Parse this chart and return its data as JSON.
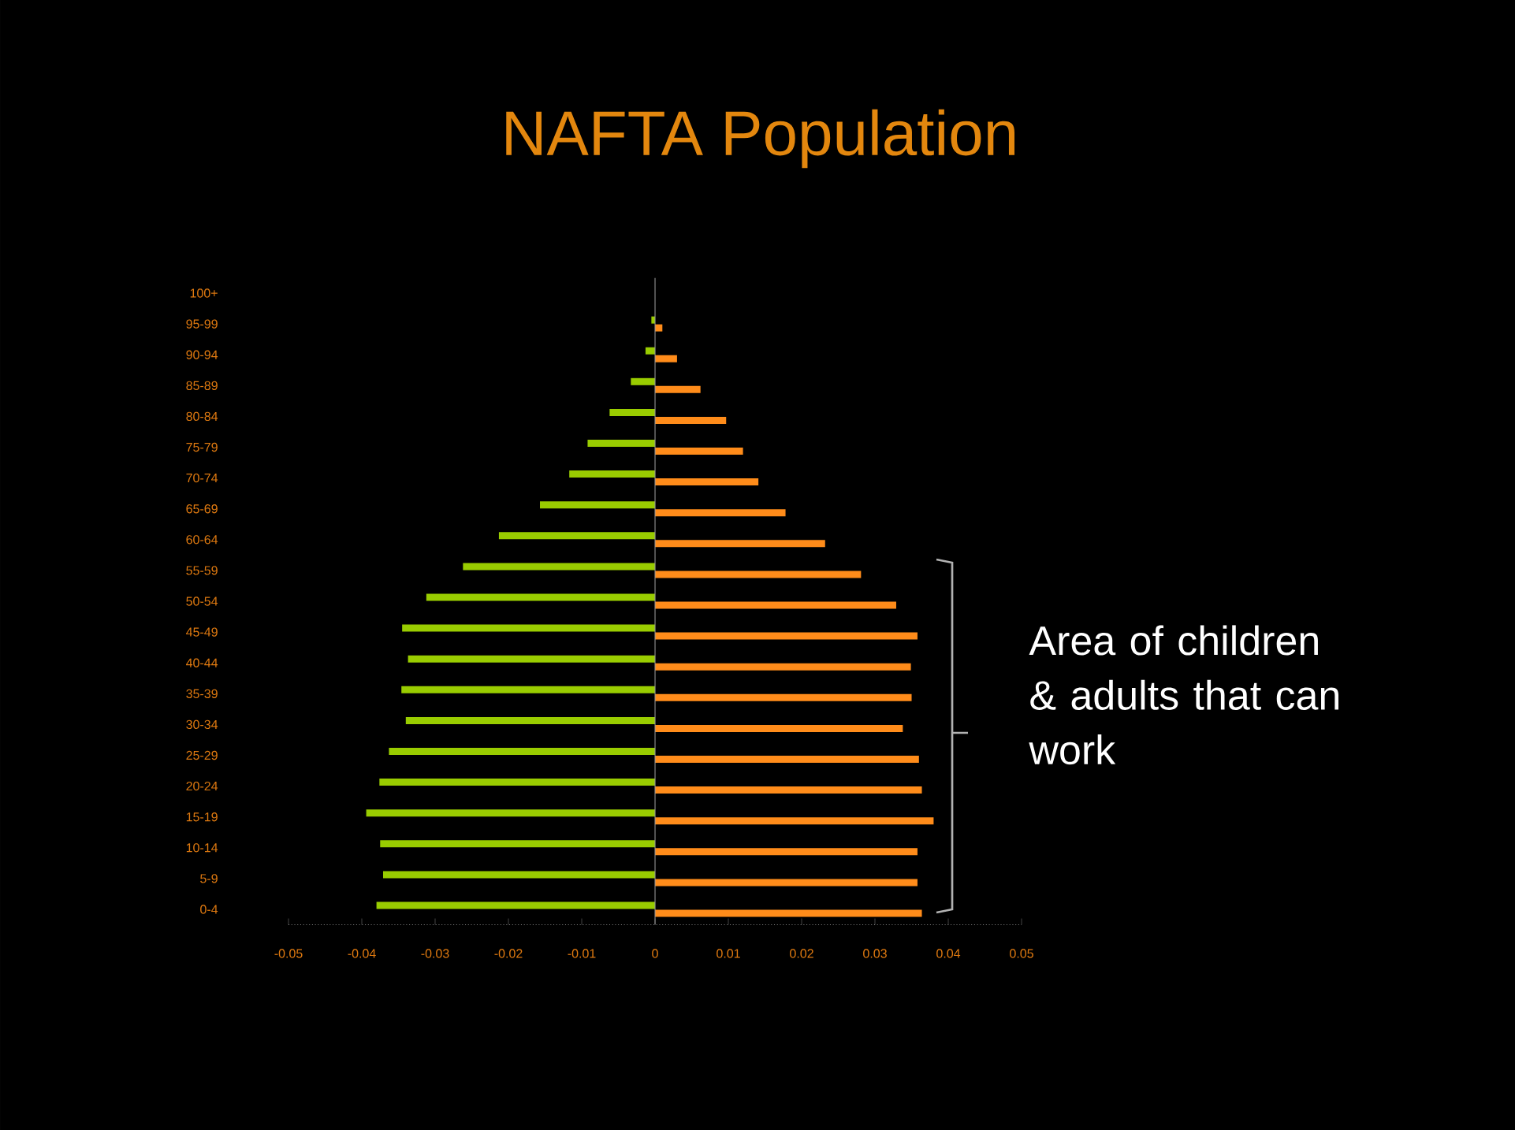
{
  "chart_data": {
    "type": "bar",
    "orientation": "horizontal",
    "title": "NAFTA Population",
    "categories": [
      "100+",
      "95-99",
      "90-94",
      "85-89",
      "80-84",
      "75-79",
      "70-74",
      "65-69",
      "60-64",
      "55-59",
      "50-54",
      "45-49",
      "40-44",
      "35-39",
      "30-34",
      "25-29",
      "20-24",
      "15-19",
      "10-14",
      "5-9",
      "0-4"
    ],
    "series": [
      {
        "color": "#99cc00",
        "values": [
          0,
          -0.0005,
          -0.0013,
          -0.0033,
          -0.0062,
          -0.0092,
          -0.0117,
          -0.0157,
          -0.0213,
          -0.0262,
          -0.0312,
          -0.0345,
          -0.0337,
          -0.0346,
          -0.034,
          -0.0363,
          -0.0376,
          -0.0394,
          -0.0375,
          -0.0371,
          -0.038
        ]
      },
      {
        "color": "#ff8c1a",
        "values": [
          0,
          0.001,
          0.003,
          0.0062,
          0.0097,
          0.012,
          0.0141,
          0.0178,
          0.0232,
          0.0281,
          0.0329,
          0.0358,
          0.0349,
          0.035,
          0.0338,
          0.036,
          0.0364,
          0.038,
          0.0358,
          0.0358,
          0.0364
        ]
      }
    ],
    "xlim": [
      -0.05,
      0.05
    ],
    "xticks": [
      -0.05,
      -0.04,
      -0.03,
      -0.02,
      -0.01,
      0,
      0.01,
      0.02,
      0.03,
      0.04,
      0.05
    ],
    "annotations": [
      "Area of children & adults that can work"
    ],
    "ref_lines": [
      {
        "axis": "x",
        "value": 0,
        "color": "#999999"
      }
    ]
  }
}
